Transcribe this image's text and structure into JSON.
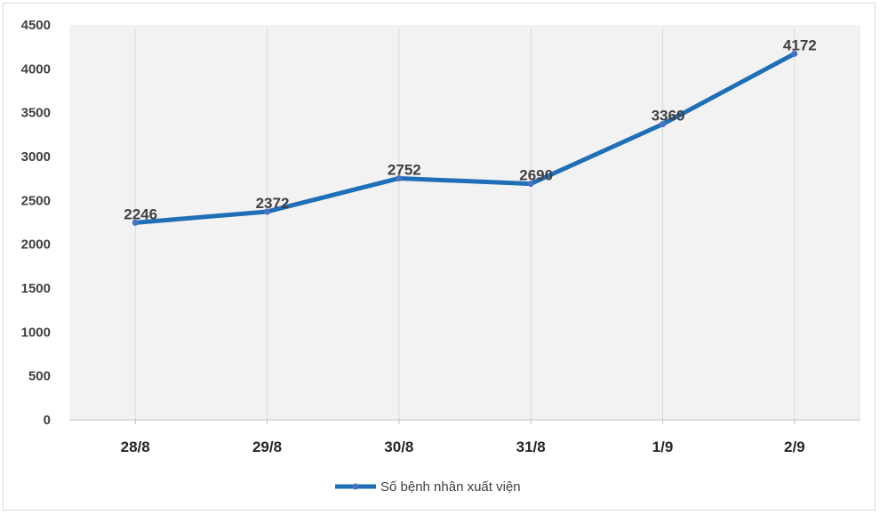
{
  "chart_data": {
    "type": "line",
    "categories": [
      "28/8",
      "29/8",
      "30/8",
      "31/8",
      "1/9",
      "2/9"
    ],
    "series": [
      {
        "name": "Số bệnh nhân xuất viện",
        "values": [
          2246,
          2372,
          2752,
          2690,
          3369,
          4172
        ]
      }
    ],
    "data_labels": [
      "2246",
      "2372",
      "2752",
      "2690",
      "3369",
      "4172"
    ],
    "y_ticks": [
      "0",
      "500",
      "1000",
      "1500",
      "2000",
      "2500",
      "3000",
      "3500",
      "4000",
      "4500"
    ],
    "ylim": [
      0,
      4500
    ],
    "grid": "vertical",
    "legend": "bottom",
    "colors": {
      "line": "#1f6fb8",
      "marker": "#4a72c4",
      "plot_bg": "#f2f2f2",
      "grid": "#d9d9d9"
    }
  }
}
